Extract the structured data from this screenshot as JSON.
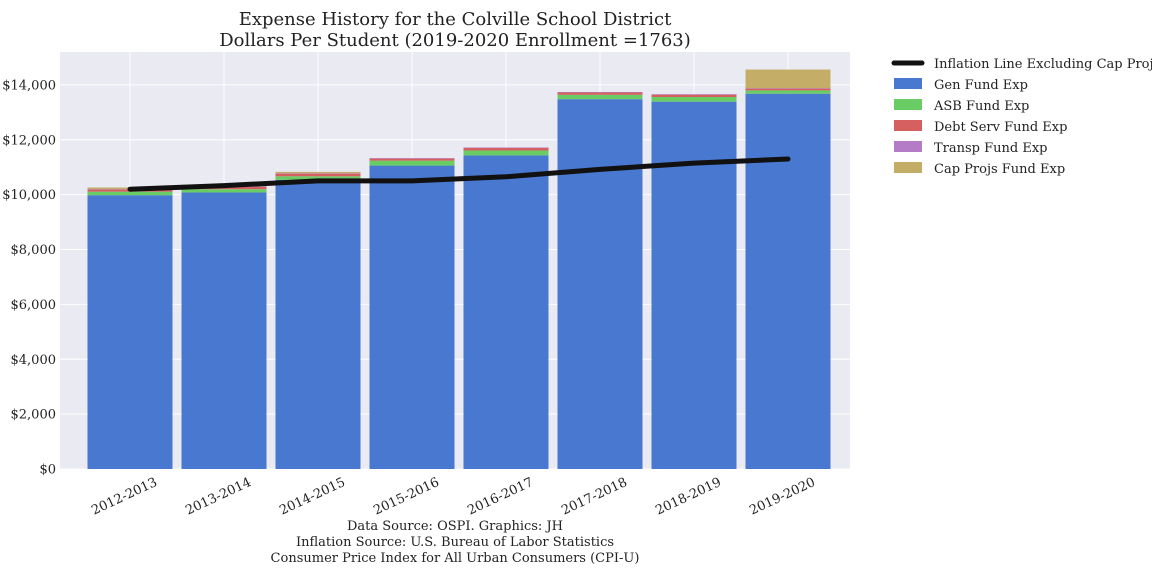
{
  "chart_data": {
    "type": "bar",
    "title": [
      "Expense History for the Colville School District",
      "Dollars Per Student (2019-2020 Enrollment =1763)"
    ],
    "xlabel": "",
    "ylabel": "",
    "ylim": [
      0,
      15200
    ],
    "yticks": [
      0,
      2000,
      4000,
      6000,
      8000,
      10000,
      12000,
      14000
    ],
    "ytick_labels": [
      "$0",
      "$2,000",
      "$4,000",
      "$6,000",
      "$8,000",
      "$10,000",
      "$12,000",
      "$14,000"
    ],
    "categories": [
      "2012-2013",
      "2013-2014",
      "2014-2015",
      "2015-2016",
      "2016-2017",
      "2017-2018",
      "2018-2019",
      "2019-2020"
    ],
    "stacked": true,
    "grid": true,
    "legend_placement": "outside-top-right",
    "series": [
      {
        "name": "Gen Fund Exp",
        "color": "#4878d0",
        "values": [
          9980,
          10080,
          10540,
          11060,
          11430,
          13480,
          13390,
          13680
        ]
      },
      {
        "name": "ASB Fund Exp",
        "color": "#6acc64",
        "values": [
          130,
          120,
          130,
          180,
          180,
          160,
          170,
          120
        ]
      },
      {
        "name": "Debt Serv Fund Exp",
        "color": "#d65f5f",
        "values": [
          80,
          90,
          100,
          80,
          100,
          90,
          90,
          70
        ]
      },
      {
        "name": "Transp Fund Exp",
        "color": "#b47cc7",
        "values": [
          10,
          10,
          10,
          10,
          10,
          10,
          10,
          10
        ]
      },
      {
        "name": "Cap Projs Fund Exp",
        "color": "#c4ad66",
        "values": [
          60,
          60,
          50,
          0,
          0,
          0,
          0,
          680
        ]
      }
    ],
    "line": {
      "name": "Inflation Line Excluding Cap Projs",
      "color": "#111111",
      "values": [
        10200,
        10330,
        10500,
        10500,
        10650,
        10920,
        11150,
        11300
      ]
    },
    "source_notes": [
      "Data Source: OSPI. Graphics: JH",
      "Inflation Source: U.S. Bureau of Labor Statistics",
      "Consumer Price Index for All Urban Consumers (CPI-U)"
    ]
  }
}
